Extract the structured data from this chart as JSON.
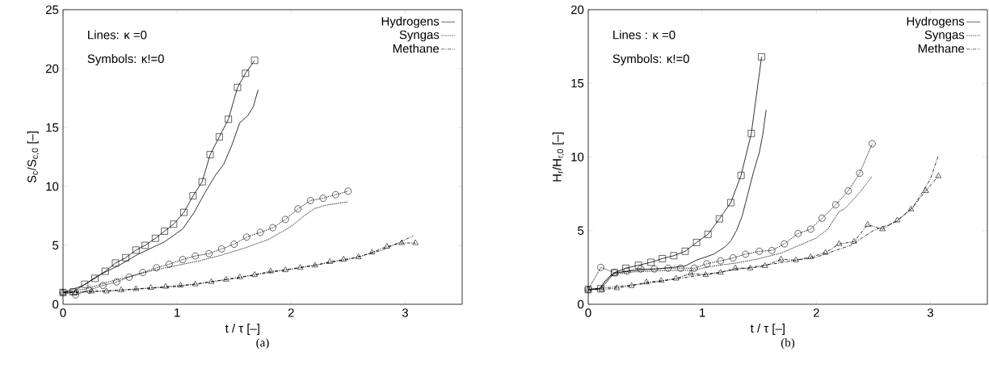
{
  "chart_data": [
    {
      "type": "line",
      "title": "(a)",
      "xlabel": "t / τ [–]",
      "ylabel": "S$_{c}$/S$_{c,0}$ [–]",
      "annotations": [
        "Lines: κ =0",
        "Symbols: κ!=0"
      ],
      "xlim": [
        0,
        3.5
      ],
      "ylim": [
        0,
        25
      ],
      "xticks": [
        0,
        1,
        2,
        3
      ],
      "yticks": [
        0,
        5,
        10,
        15,
        20,
        25
      ],
      "grid": false,
      "legend": "top right",
      "series": [
        {
          "name": "Hydrogens",
          "color": "#000000",
          "line_style": "solid",
          "marker": "none",
          "x": [
            0,
            0.18,
            0.3,
            0.49,
            0.65,
            0.89,
            1.05,
            1.15,
            1.24,
            1.34,
            1.41,
            1.48,
            1.55,
            1.62,
            1.67,
            1.71
          ],
          "values": [
            1.0,
            1.6,
            2.4,
            3.3,
            4.2,
            5.3,
            6.4,
            7.8,
            9.4,
            11.0,
            11.9,
            13.5,
            15.4,
            16.0,
            16.8,
            18.2
          ]
        },
        {
          "name": "Syngas",
          "color": "#000000",
          "line_style": "dotted",
          "marker": "none",
          "x": [
            0,
            0.2,
            0.4,
            0.6,
            0.8,
            1.0,
            1.2,
            1.4,
            1.6,
            1.8,
            2.0,
            2.1,
            2.2,
            2.3,
            2.5
          ],
          "values": [
            1.0,
            1.3,
            1.9,
            2.4,
            2.9,
            3.3,
            3.7,
            4.2,
            4.8,
            5.5,
            6.6,
            7.4,
            8.1,
            8.4,
            8.7
          ]
        },
        {
          "name": "Methane",
          "color": "#000000",
          "line_style": "dashdot",
          "marker": "none",
          "x": [
            0,
            0.5,
            1.0,
            1.5,
            2.0,
            2.5,
            2.8,
            3.07
          ],
          "values": [
            1.0,
            1.2,
            1.5,
            2.2,
            3.0,
            3.8,
            4.6,
            5.8
          ]
        },
        {
          "color": "#000000",
          "line_style": "solid",
          "marker": "square",
          "x": [
            0,
            0.09,
            0.19,
            0.28,
            0.37,
            0.46,
            0.55,
            0.64,
            0.72,
            0.81,
            0.89,
            0.97,
            1.06,
            1.14,
            1.22,
            1.29,
            1.37,
            1.45,
            1.53,
            1.6,
            1.68
          ],
          "values": [
            1.0,
            1.05,
            1.7,
            2.2,
            2.8,
            3.5,
            3.95,
            4.6,
            5.0,
            5.6,
            6.2,
            6.8,
            7.8,
            9.2,
            10.4,
            12.7,
            14.2,
            15.7,
            18.4,
            19.6,
            20.7
          ]
        },
        {
          "color": "#000000",
          "line_style": "dotted",
          "marker": "circle",
          "x": [
            0,
            0.11,
            0.23,
            0.35,
            0.47,
            0.58,
            0.7,
            0.82,
            0.93,
            1.05,
            1.16,
            1.28,
            1.39,
            1.5,
            1.61,
            1.73,
            1.84,
            1.95,
            2.06,
            2.17,
            2.28,
            2.39,
            2.5
          ],
          "values": [
            1.0,
            0.8,
            1.2,
            1.6,
            1.9,
            2.3,
            2.7,
            3.1,
            3.4,
            3.8,
            4.1,
            4.3,
            4.7,
            5.1,
            5.7,
            6.1,
            6.5,
            7.2,
            8.1,
            8.8,
            9.0,
            9.3,
            9.6
          ]
        },
        {
          "color": "#000000",
          "line_style": "dashdot",
          "marker": "triangle",
          "x": [
            0,
            0.11,
            0.25,
            0.38,
            0.51,
            0.64,
            0.77,
            0.9,
            1.03,
            1.16,
            1.3,
            1.43,
            1.55,
            1.68,
            1.82,
            1.95,
            2.08,
            2.21,
            2.34,
            2.46,
            2.59,
            2.71,
            2.84,
            2.97,
            3.09
          ],
          "values": [
            1.0,
            1.0,
            1.1,
            1.1,
            1.2,
            1.3,
            1.4,
            1.5,
            1.6,
            1.7,
            1.9,
            2.1,
            2.3,
            2.5,
            2.8,
            2.9,
            3.1,
            3.3,
            3.6,
            3.8,
            4.0,
            4.4,
            4.9,
            5.2,
            5.2
          ]
        }
      ]
    },
    {
      "type": "line",
      "title": "(b)",
      "xlabel": "t / τ [–]",
      "ylabel": "H$_{r}$/H$_{r,0}$ [–]",
      "annotations": [
        "Lines : κ =0",
        "Symbols: κ!=0"
      ],
      "xlim": [
        0,
        3.5
      ],
      "ylim": [
        0,
        20
      ],
      "xticks": [
        0,
        1,
        2,
        3
      ],
      "yticks": [
        0,
        5,
        10,
        15,
        20
      ],
      "grid": false,
      "legend": "top right",
      "series": [
        {
          "name": "Hydrogens",
          "color": "#000000",
          "line_style": "solid",
          "marker": "none",
          "x": [
            0,
            0.1,
            0.15,
            0.22,
            0.4,
            0.6,
            0.85,
            0.95,
            1.1,
            1.2,
            1.25,
            1.3,
            1.35,
            1.4,
            1.45,
            1.5,
            1.53,
            1.56
          ],
          "values": [
            1.0,
            1.05,
            1.6,
            2.1,
            2.3,
            2.4,
            2.6,
            3.0,
            3.4,
            3.9,
            4.3,
            5.0,
            6.0,
            7.5,
            9.0,
            10.3,
            11.5,
            13.2
          ]
        },
        {
          "name": "Syngas",
          "color": "#000000",
          "line_style": "dotted",
          "marker": "none",
          "x": [
            0,
            0.1,
            0.2,
            0.4,
            0.7,
            0.9,
            1.1,
            1.3,
            1.5,
            1.7,
            1.85,
            2.0,
            2.1,
            2.2,
            2.25,
            2.3,
            2.38,
            2.49
          ],
          "values": [
            1.0,
            1.1,
            2.0,
            2.2,
            2.3,
            2.3,
            2.6,
            2.8,
            3.1,
            3.5,
            4.0,
            4.5,
            5.1,
            6.3,
            6.5,
            6.9,
            7.6,
            8.7
          ]
        },
        {
          "name": "Methane",
          "color": "#000000",
          "line_style": "dashdot",
          "marker": "none",
          "x": [
            0,
            0.5,
            1.0,
            1.5,
            2.0,
            2.3,
            2.5,
            2.7,
            2.85,
            3.0,
            3.07
          ],
          "values": [
            1.0,
            1.4,
            2.0,
            2.6,
            3.2,
            4.0,
            5.0,
            5.6,
            6.6,
            8.5,
            10.1
          ]
        },
        {
          "color": "#000000",
          "line_style": "solid",
          "marker": "square",
          "x": [
            0,
            0.11,
            0.23,
            0.33,
            0.44,
            0.55,
            0.65,
            0.75,
            0.85,
            0.95,
            1.05,
            1.15,
            1.25,
            1.34,
            1.43,
            1.52
          ],
          "values": [
            1.0,
            1.05,
            2.15,
            2.45,
            2.65,
            2.85,
            3.1,
            3.3,
            3.6,
            4.2,
            4.75,
            5.8,
            6.9,
            8.75,
            11.6,
            16.8
          ]
        },
        {
          "color": "#000000",
          "line_style": "dotted",
          "marker": "circle",
          "x": [
            0,
            0.11,
            0.23,
            0.34,
            0.46,
            0.58,
            0.7,
            0.81,
            0.93,
            1.04,
            1.16,
            1.27,
            1.38,
            1.5,
            1.61,
            1.72,
            1.84,
            1.95,
            2.05,
            2.17,
            2.28,
            2.38,
            2.49
          ],
          "values": [
            1.0,
            2.5,
            2.15,
            2.25,
            2.4,
            2.4,
            2.45,
            2.45,
            2.45,
            2.75,
            2.95,
            3.15,
            3.4,
            3.6,
            3.65,
            4.1,
            4.8,
            5.1,
            5.85,
            6.75,
            7.7,
            8.9,
            10.9
          ]
        },
        {
          "color": "#000000",
          "line_style": "dashdot",
          "marker": "triangle",
          "x": [
            0,
            0.12,
            0.25,
            0.38,
            0.51,
            0.64,
            0.77,
            0.9,
            1.03,
            1.16,
            1.29,
            1.42,
            1.55,
            1.69,
            1.82,
            1.95,
            2.08,
            2.2,
            2.33,
            2.45,
            2.58,
            2.71,
            2.83,
            2.96,
            3.07
          ],
          "values": [
            1.0,
            1.0,
            1.1,
            1.25,
            1.5,
            1.6,
            1.75,
            2.1,
            2.0,
            2.15,
            2.45,
            2.45,
            2.6,
            3.05,
            3.0,
            3.2,
            3.5,
            4.1,
            4.25,
            5.4,
            5.1,
            5.7,
            6.45,
            7.7,
            8.7
          ]
        }
      ]
    }
  ]
}
